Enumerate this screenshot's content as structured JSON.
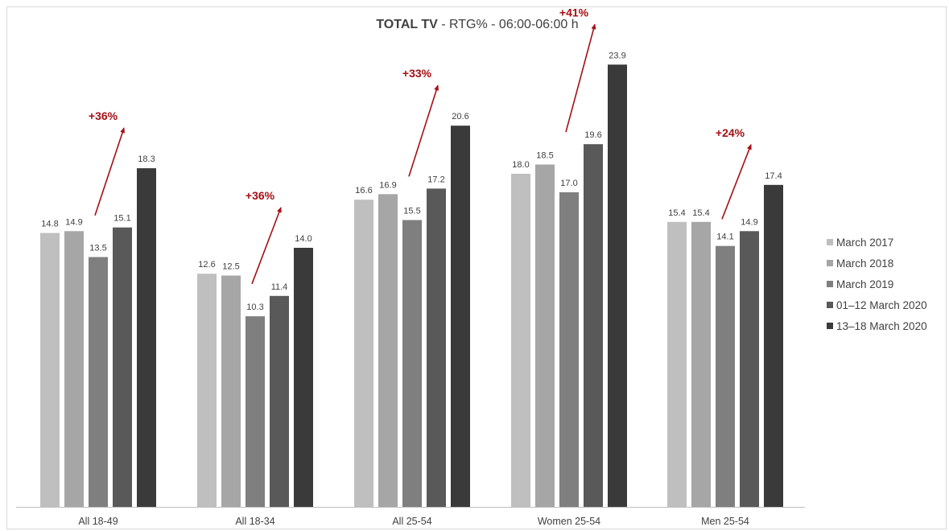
{
  "chart_data": {
    "type": "bar",
    "title_bold": "TOTAL TV",
    "title_rest": " - RTG% - 06:00-06:00 h",
    "categories": [
      "All 18-49",
      "All 18-34",
      "All 25-54",
      "Women 25-54",
      "Men 25-54"
    ],
    "series": [
      {
        "name": "March 2017",
        "color": "#bfbfbf",
        "values": [
          14.8,
          12.6,
          16.6,
          18.0,
          15.4
        ]
      },
      {
        "name": "March 2018",
        "color": "#a6a6a6",
        "values": [
          14.9,
          12.5,
          16.9,
          18.5,
          15.4
        ]
      },
      {
        "name": "March 2019",
        "color": "#7f7f7f",
        "values": [
          13.5,
          10.3,
          15.5,
          17.0,
          14.1
        ]
      },
      {
        "name": "01–12 March 2020",
        "color": "#595959",
        "values": [
          15.1,
          11.4,
          17.2,
          19.6,
          14.9
        ]
      },
      {
        "name": "13–18 March 2020",
        "color": "#3a3a3a",
        "values": [
          18.3,
          14.0,
          20.6,
          23.9,
          17.4
        ]
      }
    ],
    "value_labels": [
      [
        "14.8",
        "14.9",
        "13.5",
        "15.1",
        "18.3"
      ],
      [
        "12.6",
        "12.5",
        "10.3",
        "11.4",
        "14.0"
      ],
      [
        "16.6",
        "16.9",
        "15.5",
        "17.2",
        "20.6"
      ],
      [
        "18.0",
        "18.5",
        "17.0",
        "19.6",
        "23.9"
      ],
      [
        "15.4",
        "15.4",
        "14.1",
        "14.9",
        "17.4"
      ]
    ],
    "annotations": [
      "+36%",
      "+36%",
      "+33%",
      "+41%",
      "+24%"
    ],
    "annotation_color": "#a50f15",
    "ylim": [
      0,
      26
    ],
    "grid": false,
    "legend_position": "right"
  }
}
